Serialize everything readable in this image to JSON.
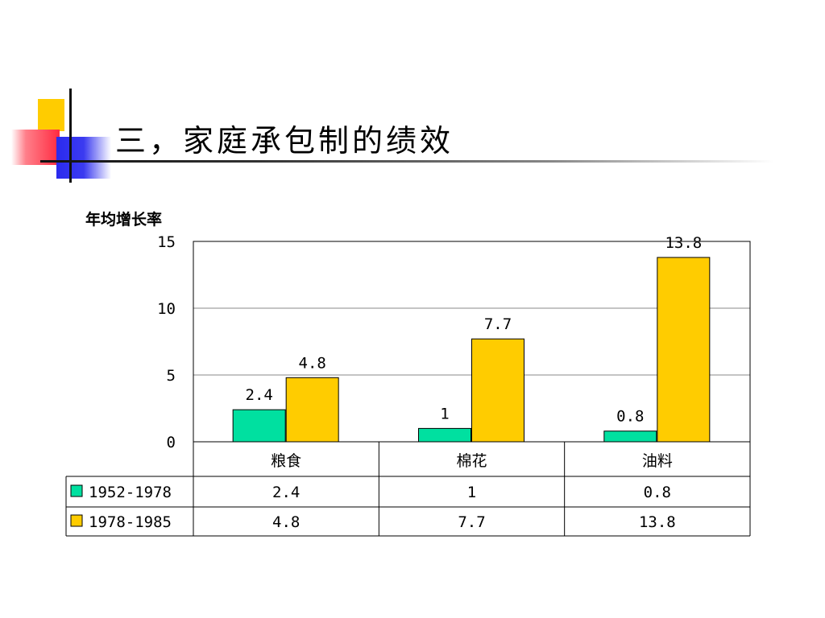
{
  "slide": {
    "title": "三，家庭承包制的绩效"
  },
  "colors": {
    "series_1952_1978": "#00e0a0",
    "series_1978_1985": "#ffcc00",
    "grid": "#888888",
    "border": "#000000"
  },
  "chart_data": {
    "type": "bar",
    "ylabel": "年均增长率",
    "categories": [
      "粮食",
      "棉花",
      "油料"
    ],
    "series": [
      {
        "name": "1952-1978",
        "values": [
          2.4,
          1,
          0.8
        ],
        "labels": [
          "2.4",
          "1",
          "0.8"
        ]
      },
      {
        "name": "1978-1985",
        "values": [
          4.8,
          7.7,
          13.8
        ],
        "labels": [
          "4.8",
          "7.7",
          "13.8"
        ]
      }
    ],
    "ylim": [
      0,
      15
    ],
    "yticks": [
      0,
      5,
      10,
      15
    ],
    "grid": true,
    "legend": "data-table-left",
    "data_table": true
  }
}
